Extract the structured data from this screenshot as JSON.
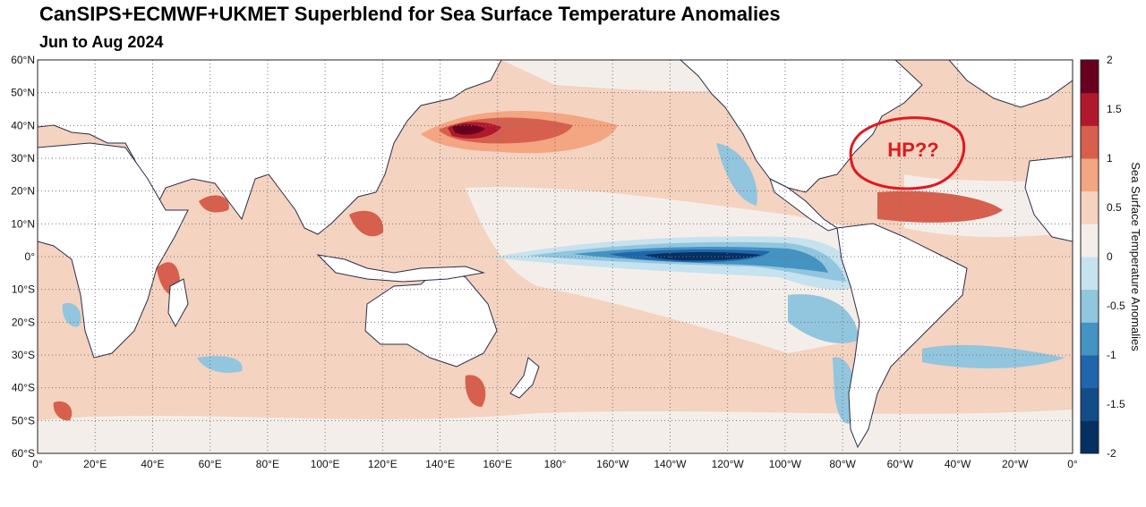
{
  "title": "CanSIPS+ECMWF+UKMET Superblend for Sea Surface Temperature Anomalies",
  "subtitle": "Jun to Aug 2024",
  "colorbar": {
    "label": "Sea Surface Temperature Anomalies",
    "ticks": [
      "2",
      "1.5",
      "1",
      "0.5",
      "0",
      "-0.5",
      "-1",
      "-1.5",
      "-2"
    ],
    "min": -2,
    "max": 2,
    "colors": [
      "#053061",
      "#134c87",
      "#2166ac",
      "#4393c3",
      "#92c5de",
      "#c6e2ee",
      "#f4eeea",
      "#f4d3c0",
      "#f4a582",
      "#d6604d",
      "#b2182b",
      "#67001f"
    ]
  },
  "lat_ticks": [
    "60°N",
    "50°N",
    "40°N",
    "30°N",
    "20°N",
    "10°N",
    "0°",
    "10°S",
    "20°S",
    "30°S",
    "40°S",
    "50°S",
    "60°S"
  ],
  "lon_ticks": [
    "0°",
    "20°E",
    "40°E",
    "60°E",
    "80°E",
    "100°E",
    "120°E",
    "140°E",
    "160°E",
    "180°",
    "160°W",
    "140°W",
    "120°W",
    "100°W",
    "80°W",
    "60°W",
    "40°W",
    "20°W",
    "0°"
  ],
  "annotation": {
    "text": "HP??",
    "color": "#e0191f"
  },
  "colors": {
    "background": "#f4d3c0",
    "land": "#ffffff",
    "coast": "#2a2d4a",
    "grid": "#777777"
  }
}
